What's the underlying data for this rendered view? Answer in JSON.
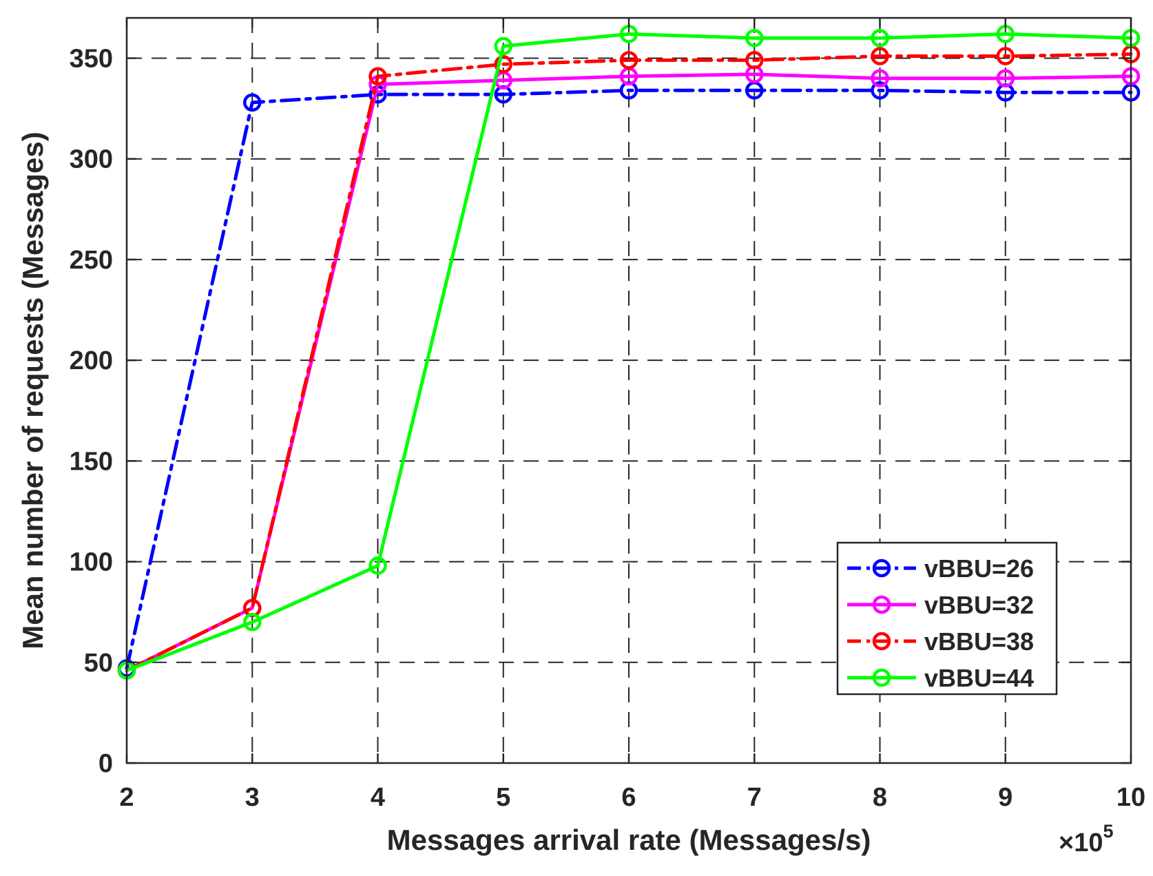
{
  "chart_data": {
    "type": "line",
    "title": "",
    "xlabel": "Messages arrival rate (Messages/s)",
    "ylabel": "Mean number of requests (Messages)",
    "x_exponent_label": "×10",
    "x_exponent_power": "5",
    "xlim": [
      2,
      10
    ],
    "ylim": [
      0,
      370
    ],
    "xticks": [
      2,
      3,
      4,
      5,
      6,
      7,
      8,
      9,
      10
    ],
    "xtick_labels": [
      "2",
      "3",
      "4",
      "5",
      "6",
      "7",
      "8",
      "9",
      "10"
    ],
    "yticks": [
      0,
      50,
      100,
      150,
      200,
      250,
      300,
      350
    ],
    "ytick_labels": [
      "0",
      "50",
      "100",
      "150",
      "200",
      "250",
      "300",
      "350"
    ],
    "grid": true,
    "legend_position": "lower-right",
    "x": [
      2,
      3,
      4,
      5,
      6,
      7,
      8,
      9,
      10
    ],
    "series": [
      {
        "name": "vBBU=26",
        "color": "#0000ff",
        "line_style": "dash-dot",
        "marker": "circle",
        "values": [
          47,
          328,
          332,
          332,
          334,
          334,
          334,
          333,
          333
        ]
      },
      {
        "name": "vBBU=32",
        "color": "#ff00ff",
        "line_style": "solid",
        "marker": "circle",
        "values": [
          46,
          77,
          337,
          339,
          341,
          342,
          340,
          340,
          341
        ]
      },
      {
        "name": "vBBU=38",
        "color": "#ff0000",
        "line_style": "dash-dot",
        "marker": "circle",
        "values": [
          46,
          77,
          341,
          347,
          349,
          349,
          351,
          351,
          352
        ]
      },
      {
        "name": "vBBU=44",
        "color": "#00ff00",
        "line_style": "solid",
        "marker": "circle",
        "values": [
          46,
          70,
          98,
          356,
          362,
          360,
          360,
          362,
          360
        ]
      }
    ]
  }
}
